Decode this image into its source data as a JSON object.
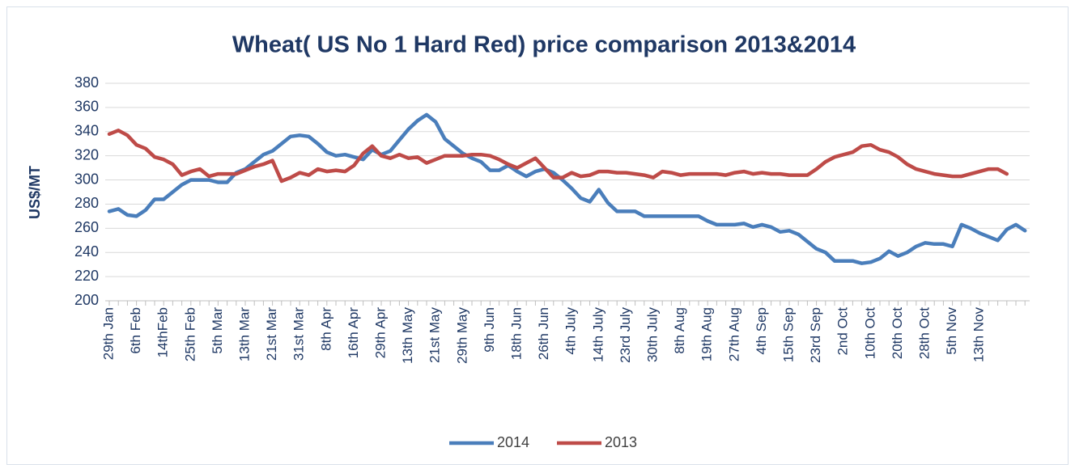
{
  "chart_data": {
    "type": "line",
    "title": "Wheat( US No 1 Hard Red) price comparison 2013&2014",
    "y_label": "US$/MT",
    "categories": [
      "29th Jan",
      null,
      null,
      "6th Feb",
      null,
      null,
      "14thFeb",
      null,
      null,
      "25th Feb",
      null,
      null,
      "5th Mar",
      null,
      null,
      "13th Mar",
      null,
      null,
      "21st Mar",
      null,
      null,
      "31st Mar",
      null,
      null,
      "8th Apr",
      null,
      null,
      "16th Apr",
      null,
      null,
      "29th Apr",
      null,
      null,
      "13th May",
      null,
      null,
      "21st May",
      null,
      null,
      "29th May",
      null,
      null,
      "9th Jun",
      null,
      null,
      "18th Jun",
      null,
      null,
      "26th Jun",
      null,
      null,
      "4th July",
      null,
      null,
      "14th July",
      null,
      null,
      "23rd July",
      null,
      null,
      "30th July",
      null,
      null,
      "8th Aug",
      null,
      null,
      "19th Aug",
      null,
      null,
      "27th Aug",
      null,
      null,
      "4th Sep",
      null,
      null,
      "15th Sep",
      null,
      null,
      "23rd Sep",
      null,
      null,
      "2nd Oct",
      null,
      null,
      "10th Oct",
      null,
      null,
      "20th Oct",
      null,
      null,
      "28th Oct",
      null,
      null,
      "5th  Nov",
      null,
      null,
      "13th  Nov",
      null,
      null,
      null,
      null,
      null
    ],
    "series": [
      {
        "name": "2014",
        "color": "#4a7ebb",
        "values": [
          274,
          276,
          271,
          270,
          275,
          284,
          284,
          290,
          296,
          300,
          300,
          300,
          298,
          298,
          306,
          309,
          315,
          321,
          324,
          330,
          336,
          337,
          336,
          330,
          323,
          320,
          321,
          319,
          317,
          325,
          321,
          324,
          333,
          342,
          349,
          354,
          348,
          334,
          328,
          322,
          318,
          315,
          308,
          308,
          312,
          307,
          303,
          307,
          309,
          306,
          300,
          293,
          285,
          282,
          292,
          281,
          274,
          274,
          274,
          270,
          270,
          270,
          270,
          270,
          270,
          270,
          266,
          263,
          263,
          263,
          264,
          261,
          263,
          261,
          257,
          258,
          255,
          249,
          243,
          240,
          233,
          233,
          233,
          231,
          232,
          235,
          241,
          237,
          240,
          245,
          248,
          247,
          247,
          245,
          263,
          260,
          256,
          253,
          250,
          259,
          263,
          258
        ]
      },
      {
        "name": "2013",
        "color": "#be4b48",
        "values": [
          338,
          341,
          337,
          329,
          326,
          319,
          317,
          313,
          304,
          307,
          309,
          303,
          305,
          305,
          305,
          308,
          311,
          313,
          316,
          299,
          302,
          306,
          304,
          309,
          307,
          308,
          307,
          312,
          322,
          328,
          320,
          318,
          321,
          318,
          319,
          314,
          317,
          320,
          320,
          320,
          321,
          321,
          320,
          317,
          313,
          310,
          314,
          318,
          310,
          302,
          302,
          306,
          303,
          304,
          307,
          307,
          306,
          306,
          305,
          304,
          302,
          307,
          306,
          304,
          305,
          305,
          305,
          305,
          304,
          306,
          307,
          305,
          306,
          305,
          305,
          304,
          304,
          304,
          309,
          315,
          319,
          321,
          323,
          328,
          329,
          325,
          323,
          319,
          313,
          309,
          307,
          305,
          304,
          303,
          303,
          305,
          307,
          309,
          309,
          305,
          null,
          null
        ]
      }
    ],
    "ylim": [
      200,
      380
    ],
    "yticks": [
      200,
      220,
      240,
      260,
      280,
      300,
      320,
      340,
      360,
      380
    ],
    "grid": true,
    "legend": "bottom"
  }
}
